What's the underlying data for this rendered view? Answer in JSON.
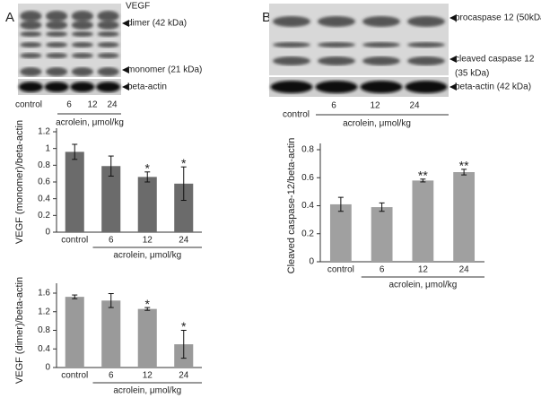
{
  "chart_data": [
    {
      "type": "bar",
      "y_label": "VEGF (monomer)/beta-actin",
      "categories": [
        "control",
        "6",
        "12",
        "24"
      ],
      "x_label": "acrolein, μmol/kg",
      "values": [
        0.96,
        0.79,
        0.66,
        0.58
      ],
      "errors": [
        0.09,
        0.12,
        0.06,
        0.2
      ],
      "significance": [
        null,
        null,
        "*",
        "*"
      ],
      "color": "#6b6b6b",
      "ylim": [
        0,
        1.2
      ],
      "yticks": [
        0,
        0.2,
        0.4,
        0.6,
        0.8,
        1,
        1.2
      ]
    },
    {
      "type": "bar",
      "y_label": "VEGF (dimer)/beta-actin",
      "categories": [
        "control",
        "6",
        "12",
        "24"
      ],
      "x_label": "acrolein, μmol/kg",
      "values": [
        1.52,
        1.44,
        1.26,
        0.5
      ],
      "errors": [
        0.04,
        0.15,
        0.03,
        0.3
      ],
      "significance": [
        null,
        null,
        "*",
        "*"
      ],
      "color": "#9a9a9a",
      "ylim": [
        0,
        1.6
      ],
      "yticks": [
        0,
        0.4,
        0.8,
        1.2,
        1.6
      ]
    },
    {
      "type": "bar",
      "y_label": "Cleaved caspase-12/beta-actin",
      "categories": [
        "control",
        "6",
        "12",
        "24"
      ],
      "x_label": "acrolein, μmol/kg",
      "values": [
        0.41,
        0.39,
        0.58,
        0.64
      ],
      "errors": [
        0.05,
        0.03,
        0.01,
        0.02
      ],
      "significance": [
        null,
        null,
        "**",
        "**"
      ],
      "color": "#a0a0a0",
      "ylim": [
        0,
        0.8
      ],
      "yticks": [
        0,
        0.2,
        0.4,
        0.6,
        0.8
      ]
    }
  ],
  "blots": [
    {
      "panel": "A",
      "protein": "VEGF",
      "bands": [
        "dimer (42 kDa)",
        "monomer (21 kDa)",
        "beta-actin"
      ],
      "lanes": [
        "control",
        "6",
        "12",
        "24"
      ],
      "group_label": "acrolein, μmol/kg"
    },
    {
      "panel": "B",
      "bands": [
        "procaspase 12 (50kDa)",
        "cleaved caspase 12",
        "(35 kDa)",
        "beta-actin (42 kDa)"
      ],
      "lanes": [
        "control",
        "6",
        "12",
        "24"
      ],
      "group_label": "acrolein, μmol/kg"
    }
  ]
}
